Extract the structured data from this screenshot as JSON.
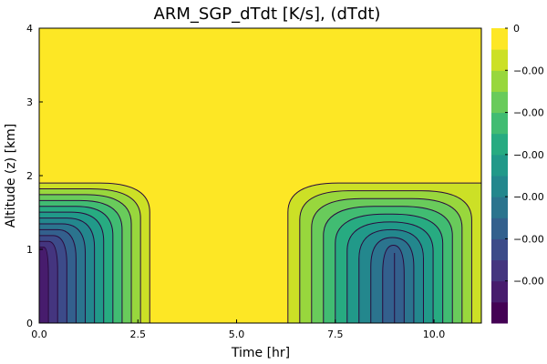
{
  "chart_data": {
    "type": "heatmap",
    "title": "ARM_SGP_dTdt [K/s], (dTdt)",
    "xlabel": "Time [hr]",
    "ylabel": "Altitude (z) [km]",
    "xlim": [
      0,
      11.2
    ],
    "ylim": [
      0,
      4
    ],
    "x_ticks": [
      {
        "value": 0,
        "label": "0.0"
      },
      {
        "value": 2.5,
        "label": "2.5"
      },
      {
        "value": 5,
        "label": "5.0"
      },
      {
        "value": 7.5,
        "label": "7.5"
      },
      {
        "value": 10,
        "label": "10.0"
      }
    ],
    "y_ticks": [
      {
        "value": 0,
        "label": "0"
      },
      {
        "value": 1,
        "label": "1"
      },
      {
        "value": 2,
        "label": "2"
      },
      {
        "value": 3,
        "label": "3"
      },
      {
        "value": 4,
        "label": "4"
      }
    ],
    "colorbar": {
      "colormap": "viridis",
      "levels": 14,
      "tick_labels": [
        {
          "level": 14,
          "label": "0"
        },
        {
          "level": 12,
          "label": "−0.00"
        },
        {
          "level": 10,
          "label": "−0.00"
        },
        {
          "level": 8,
          "label": "−0.00"
        },
        {
          "level": 6,
          "label": "−0.00"
        },
        {
          "level": 4,
          "label": "−0.00"
        },
        {
          "level": 2,
          "label": "−0.00"
        }
      ]
    },
    "regions": [
      {
        "name": "left-cooling",
        "t_start": 0.0,
        "t_end": 2.8,
        "z_top": 1.9,
        "min_level": 0,
        "core_time": 0.0
      },
      {
        "name": "right-cooling",
        "t_start": 6.3,
        "t_end": 11.2,
        "z_top": 1.9,
        "min_level": 3,
        "core_time": 9.0
      }
    ],
    "colors": {
      "background_fill": "#fde725",
      "contour_line": "#2b0a3d",
      "frame": "#000000"
    }
  }
}
